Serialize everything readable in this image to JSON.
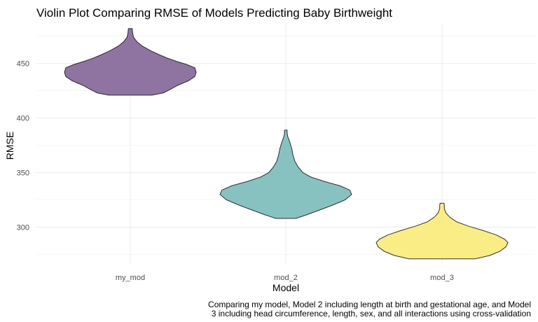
{
  "chart_data": {
    "type": "violin",
    "title": "Violin Plot Comparing RMSE of Models Predicting Baby Birthweight",
    "xlabel": "Model",
    "ylabel": "RMSE",
    "categories": [
      "my_mod",
      "mod_2",
      "mod_3"
    ],
    "ylim": [
      267,
      487
    ],
    "yticks": [
      300,
      350,
      400,
      450
    ],
    "grid": "on",
    "caption_lines": [
      "Comparing my model, Model 2 including length at birth and gestational age, and Model",
      "3 including head circumference, length, sex, and all interactions using cross-validation"
    ],
    "series": [
      {
        "category": "my_mod",
        "color": "#86689a",
        "min": 421,
        "max": 482,
        "profile": [
          [
            421,
            0.33
          ],
          [
            423,
            0.5
          ],
          [
            426,
            0.6
          ],
          [
            430,
            0.72
          ],
          [
            434,
            0.88
          ],
          [
            438,
            0.98
          ],
          [
            442,
            1.0
          ],
          [
            446,
            0.98
          ],
          [
            449,
            0.86
          ],
          [
            452,
            0.7
          ],
          [
            455,
            0.56
          ],
          [
            458,
            0.44
          ],
          [
            462,
            0.3
          ],
          [
            466,
            0.18
          ],
          [
            470,
            0.1
          ],
          [
            474,
            0.05
          ],
          [
            478,
            0.035
          ],
          [
            482,
            0.03
          ]
        ]
      },
      {
        "category": "mod_2",
        "color": "#7dbdbc",
        "min": 308,
        "max": 389,
        "profile": [
          [
            308,
            0.15
          ],
          [
            311,
            0.3
          ],
          [
            315,
            0.48
          ],
          [
            320,
            0.7
          ],
          [
            325,
            0.9
          ],
          [
            330,
            1.0
          ],
          [
            334,
            0.97
          ],
          [
            338,
            0.82
          ],
          [
            342,
            0.58
          ],
          [
            346,
            0.38
          ],
          [
            350,
            0.26
          ],
          [
            355,
            0.19
          ],
          [
            360,
            0.14
          ],
          [
            366,
            0.11
          ],
          [
            372,
            0.09
          ],
          [
            378,
            0.06
          ],
          [
            383,
            0.03
          ],
          [
            386,
            0.02
          ],
          [
            389,
            0.02
          ]
        ]
      },
      {
        "category": "mod_3",
        "color": "#fbeb7b",
        "min": 271,
        "max": 322,
        "profile": [
          [
            271,
            0.5
          ],
          [
            274,
            0.72
          ],
          [
            278,
            0.88
          ],
          [
            282,
            0.97
          ],
          [
            286,
            1.0
          ],
          [
            289,
            0.95
          ],
          [
            293,
            0.82
          ],
          [
            297,
            0.62
          ],
          [
            301,
            0.4
          ],
          [
            305,
            0.22
          ],
          [
            309,
            0.12
          ],
          [
            313,
            0.06
          ],
          [
            317,
            0.035
          ],
          [
            320,
            0.035
          ],
          [
            322,
            0.03
          ]
        ]
      }
    ]
  }
}
